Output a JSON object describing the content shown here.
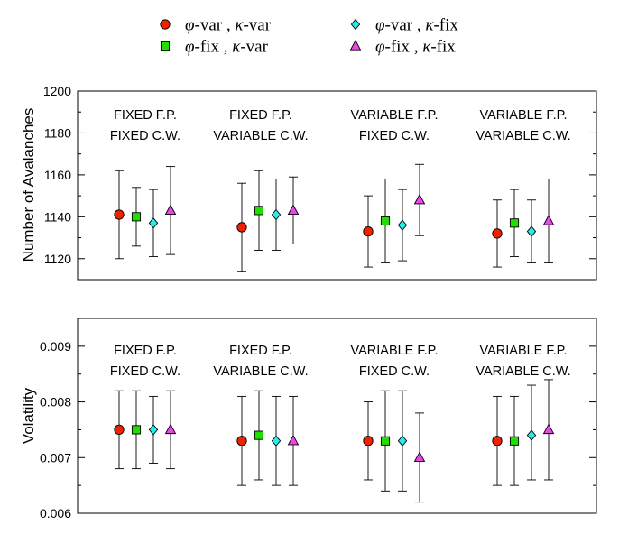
{
  "chart_data": [
    {
      "type": "scatter",
      "ylabel": "Number of Avalanches",
      "ylim": [
        1110,
        1200
      ],
      "yticks": [
        1120,
        1140,
        1160,
        1180,
        1200
      ],
      "ytick_labels": [
        "1120",
        "1140",
        "1160",
        "1180",
        "1200"
      ],
      "groups": [
        {
          "line1": "FIXED F.P.",
          "line2": "FIXED C.W."
        },
        {
          "line1": "FIXED F.P.",
          "line2": "VARIABLE C.W."
        },
        {
          "line1": "VARIABLE F.P.",
          "line2": "FIXED C.W."
        },
        {
          "line1": "VARIABLE F.P.",
          "line2": "VARIABLE C.W."
        }
      ],
      "series": [
        {
          "name": "phi-var, kappa-var",
          "marker": "circle",
          "color": "#ee2200",
          "values": [
            1141,
            1135,
            1133,
            1132
          ],
          "lower": [
            1120,
            1114,
            1116,
            1116
          ],
          "upper": [
            1162,
            1156,
            1150,
            1148
          ]
        },
        {
          "name": "phi-fix, kappa-var",
          "marker": "square",
          "color": "#22dd00",
          "values": [
            1140,
            1143,
            1138,
            1137
          ],
          "lower": [
            1126,
            1124,
            1118,
            1121
          ],
          "upper": [
            1154,
            1162,
            1158,
            1153
          ]
        },
        {
          "name": "phi-var, kappa-fix",
          "marker": "diamond",
          "color": "#22eeee",
          "values": [
            1137,
            1141,
            1136,
            1133
          ],
          "lower": [
            1121,
            1124,
            1119,
            1118
          ],
          "upper": [
            1153,
            1158,
            1153,
            1148
          ]
        },
        {
          "name": "phi-fix, kappa-fix",
          "marker": "triangle",
          "color": "#ee44ee",
          "values": [
            1143,
            1143,
            1148,
            1138
          ],
          "lower": [
            1122,
            1127,
            1131,
            1118
          ],
          "upper": [
            1164,
            1159,
            1165,
            1158
          ]
        }
      ]
    },
    {
      "type": "scatter",
      "ylabel": "Volatility",
      "ylim": [
        0.006,
        0.0095
      ],
      "yticks": [
        0.006,
        0.007,
        0.008,
        0.009
      ],
      "ytick_labels": [
        "0.006",
        "0.007",
        "0.008",
        "0.009"
      ],
      "groups": [
        {
          "line1": "FIXED F.P.",
          "line2": "FIXED C.W."
        },
        {
          "line1": "FIXED F.P.",
          "line2": "VARIABLE C.W."
        },
        {
          "line1": "VARIABLE F.P.",
          "line2": "FIXED C.W."
        },
        {
          "line1": "VARIABLE F.P.",
          "line2": "VARIABLE C.W."
        }
      ],
      "series": [
        {
          "name": "phi-var, kappa-var",
          "marker": "circle",
          "color": "#ee2200",
          "values": [
            0.0075,
            0.0073,
            0.0073,
            0.0073
          ],
          "lower": [
            0.0068,
            0.0065,
            0.0066,
            0.0065
          ],
          "upper": [
            0.0082,
            0.0081,
            0.008,
            0.0081
          ]
        },
        {
          "name": "phi-fix, kappa-var",
          "marker": "square",
          "color": "#22dd00",
          "values": [
            0.0075,
            0.0074,
            0.0073,
            0.0073
          ],
          "lower": [
            0.0068,
            0.0066,
            0.0064,
            0.0065
          ],
          "upper": [
            0.0082,
            0.0082,
            0.0082,
            0.0081
          ]
        },
        {
          "name": "phi-var, kappa-fix",
          "marker": "diamond",
          "color": "#22eeee",
          "values": [
            0.0075,
            0.0073,
            0.0073,
            0.0074
          ],
          "lower": [
            0.0069,
            0.0065,
            0.0064,
            0.0066
          ],
          "upper": [
            0.0081,
            0.0081,
            0.0082,
            0.0083
          ]
        },
        {
          "name": "phi-fix, kappa-fix",
          "marker": "triangle",
          "color": "#ee44ee",
          "values": [
            0.0075,
            0.0073,
            0.007,
            0.0075
          ],
          "lower": [
            0.0068,
            0.0065,
            0.0062,
            0.0066
          ],
          "upper": [
            0.0082,
            0.0081,
            0.0078,
            0.0084
          ]
        }
      ]
    }
  ],
  "legend": [
    {
      "marker": "circle",
      "color": "#ee2200",
      "phi_word": "var",
      "kappa_word": "var"
    },
    {
      "marker": "diamond",
      "color": "#22eeee",
      "phi_word": "var",
      "kappa_word": "fix"
    },
    {
      "marker": "square",
      "color": "#22dd00",
      "phi_word": "fix",
      "kappa_word": "var"
    },
    {
      "marker": "triangle",
      "color": "#ee44ee",
      "phi_word": "fix",
      "kappa_word": "fix"
    }
  ]
}
